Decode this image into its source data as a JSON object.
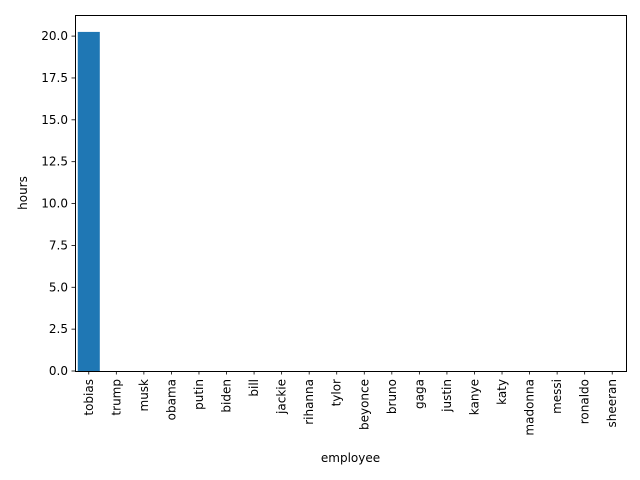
{
  "chart_data": {
    "type": "bar",
    "xlabel": "employee",
    "ylabel": "hours",
    "categories": [
      "tobias",
      "trump",
      "musk",
      "obama",
      "putin",
      "biden",
      "bill",
      "jackie",
      "rihanna",
      "tylor",
      "beyonce",
      "bruno",
      "gaga",
      "justin",
      "kanye",
      "katy",
      "madonna",
      "messi",
      "ronaldo",
      "sheeran"
    ],
    "values": [
      20.25,
      0,
      0,
      0,
      0,
      0,
      0,
      0,
      0,
      0,
      0,
      0,
      0,
      0,
      0,
      0,
      0,
      0,
      0,
      0
    ],
    "ylim": [
      0,
      21.26
    ],
    "yticks": [
      "0.0",
      "2.5",
      "5.0",
      "7.5",
      "10.0",
      "12.5",
      "15.0",
      "17.5",
      "20.0"
    ],
    "ytick_values": [
      0,
      2.5,
      5,
      7.5,
      10,
      12.5,
      15,
      17.5,
      20
    ],
    "bar_color": "#1f77b4",
    "grid": false,
    "legend": "none"
  }
}
